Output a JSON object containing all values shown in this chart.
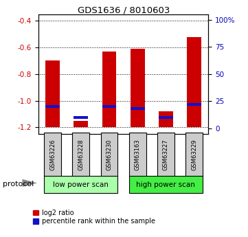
{
  "title": "GDS1636 / 8010603",
  "samples": [
    "GSM63226",
    "GSM63228",
    "GSM63230",
    "GSM63163",
    "GSM63227",
    "GSM63229"
  ],
  "log2_ratio": [
    -0.7,
    -1.15,
    -0.63,
    -0.61,
    -1.08,
    -0.52
  ],
  "percentile_rank": [
    20,
    10,
    20,
    18,
    10,
    22
  ],
  "bar_bottom": -1.2,
  "bar_color": "#cc0000",
  "blue_color": "#1111cc",
  "ylim_left": [
    -1.25,
    -0.35
  ],
  "yticks_left": [
    -1.2,
    -1.0,
    -0.8,
    -0.6,
    -0.4
  ],
  "yticks_right": [
    0,
    25,
    50,
    75,
    100
  ],
  "ylim_right": [
    -5.25,
    105
  ],
  "groups": [
    {
      "label": "low power scan",
      "indices": [
        0,
        1,
        2
      ],
      "color": "#aaffaa"
    },
    {
      "label": "high power scan",
      "indices": [
        3,
        4,
        5
      ],
      "color": "#44ee44"
    }
  ],
  "protocol_label": "protocol",
  "legend_items": [
    {
      "label": "log2 ratio",
      "color": "#cc0000"
    },
    {
      "label": "percentile rank within the sample",
      "color": "#1111cc"
    }
  ],
  "background_color": "#ffffff",
  "plot_bg": "#ffffff",
  "tick_label_color_left": "#cc0000",
  "tick_label_color_right": "#0000bb",
  "gray_box": "#cccccc",
  "bar_width": 0.5
}
